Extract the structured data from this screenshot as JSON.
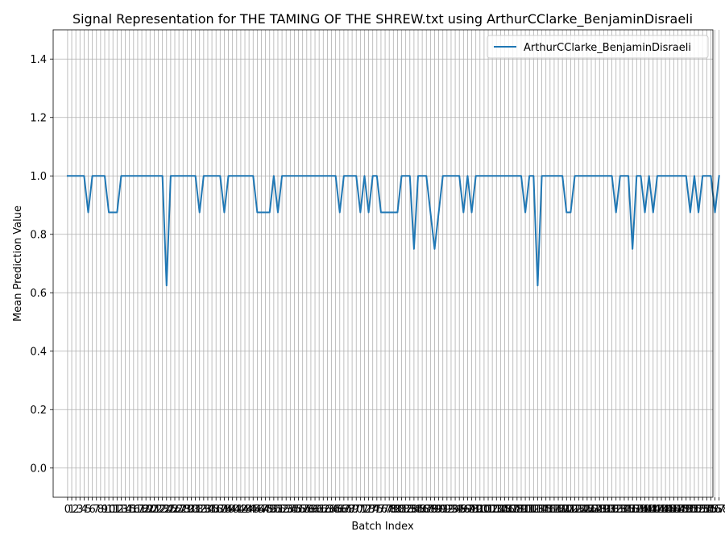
{
  "chart_data": {
    "type": "line",
    "title": "Signal Representation for THE TAMING OF THE SHREW.txt using ArthurCClarke_BenjaminDisraeli",
    "xlabel": "Batch Index",
    "ylabel": "Mean Prediction Value",
    "xlim": [
      -3.5,
      156.5
    ],
    "ylim": [
      -0.1,
      1.5
    ],
    "yticks": [
      0.0,
      0.2,
      0.4,
      0.6,
      0.8,
      1.0,
      1.2,
      1.4
    ],
    "ytick_labels": [
      "0.0",
      "0.2",
      "0.4",
      "0.6",
      "0.8",
      "1.0",
      "1.2",
      "1.4"
    ],
    "x_tick_step": 1,
    "grid": true,
    "legend_position": "top-right",
    "colors": {
      "series": "#1f77b4",
      "grid": "#b0b0b0"
    },
    "series": [
      {
        "name": "ArthurCClarke_BenjaminDisraeli",
        "x_start": 0,
        "x_step": 1,
        "values": [
          1,
          1,
          1,
          1,
          1,
          0.875,
          1,
          1,
          1,
          1,
          0.875,
          0.875,
          0.875,
          1,
          1,
          1,
          1,
          1,
          1,
          1,
          1,
          1,
          1,
          1,
          0.625,
          1,
          1,
          1,
          1,
          1,
          1,
          1,
          0.875,
          1,
          1,
          1,
          1,
          1,
          0.875,
          1,
          1,
          1,
          1,
          1,
          1,
          1,
          0.875,
          0.875,
          0.875,
          0.875,
          1,
          0.875,
          1,
          1,
          1,
          1,
          1,
          1,
          1,
          1,
          1,
          1,
          1,
          1,
          1,
          1,
          0.875,
          1,
          1,
          1,
          1,
          0.875,
          1,
          0.875,
          1,
          1,
          0.875,
          0.875,
          0.875,
          0.875,
          0.875,
          1,
          1,
          1,
          0.75,
          1,
          1,
          1,
          0.875,
          0.75,
          0.875,
          1,
          1,
          1,
          1,
          1,
          0.875,
          1,
          0.875,
          1,
          1,
          1,
          1,
          1,
          1,
          1,
          1,
          1,
          1,
          1,
          1,
          0.875,
          1,
          1,
          0.625,
          1,
          1,
          1,
          1,
          1,
          1,
          0.875,
          0.875,
          1,
          1,
          1,
          1,
          1,
          1,
          1,
          1,
          1,
          1,
          0.875,
          1,
          1,
          1,
          0.75,
          1,
          1,
          0.875,
          1,
          0.875,
          1,
          1,
          1,
          1,
          1,
          1,
          1,
          1,
          0.875,
          1,
          0.875,
          1,
          1,
          1,
          0.875,
          1
        ]
      }
    ]
  }
}
